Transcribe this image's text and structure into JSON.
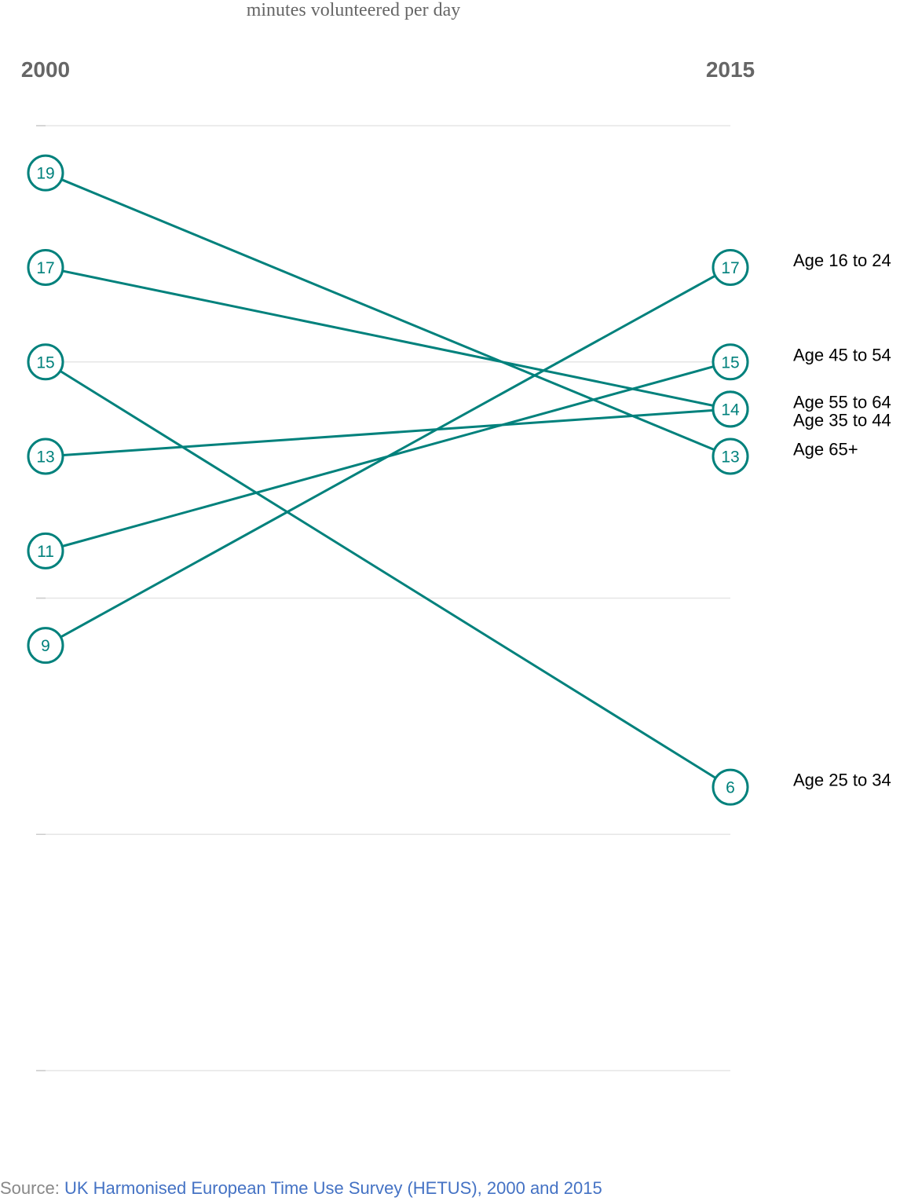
{
  "chart_data": {
    "type": "line",
    "subtitle": "minutes volunteered per day",
    "categories": [
      "2000",
      "2015"
    ],
    "ylim": [
      0,
      20
    ],
    "grid": true,
    "series": [
      {
        "name": "Age 16 to 24",
        "values": [
          9,
          17
        ]
      },
      {
        "name": "Age 45 to 54",
        "values": [
          11,
          15
        ]
      },
      {
        "name": "Age 55 to 64",
        "values": [
          17,
          14
        ]
      },
      {
        "name": "Age 35 to 44",
        "values": [
          13,
          14
        ]
      },
      {
        "name": "Age 65+",
        "values": [
          19,
          13
        ]
      },
      {
        "name": "Age 25 to 34",
        "values": [
          15,
          6
        ]
      }
    ],
    "color": "#00817c"
  },
  "source": {
    "prefix": "Source: ",
    "link_text": "UK Harmonised European Time Use Survey (HETUS), 2000 and 2015"
  }
}
